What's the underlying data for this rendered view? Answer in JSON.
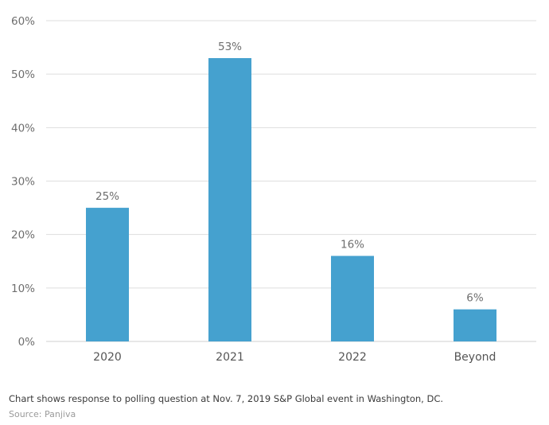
{
  "chart_data": {
    "type": "bar",
    "categories": [
      "2020",
      "2021",
      "2022",
      "Beyond"
    ],
    "values": [
      25,
      53,
      16,
      6
    ],
    "value_labels": [
      "25%",
      "53%",
      "16%",
      "6%"
    ],
    "title": "",
    "xlabel": "",
    "ylabel": "",
    "ylim": [
      0,
      60
    ],
    "y_ticks": [
      0,
      10,
      20,
      30,
      40,
      50,
      60
    ],
    "y_tick_labels": [
      "0%",
      "10%",
      "20%",
      "30%",
      "40%",
      "50%",
      "60%"
    ],
    "grid": true,
    "legend": "none",
    "bar_color": "#45a1cf",
    "grid_color": "#dedede"
  },
  "footer": {
    "caption": "Chart shows response to polling question at Nov. 7, 2019 S&P Global event in Washington, DC.",
    "source": "Source: Panjiva"
  }
}
